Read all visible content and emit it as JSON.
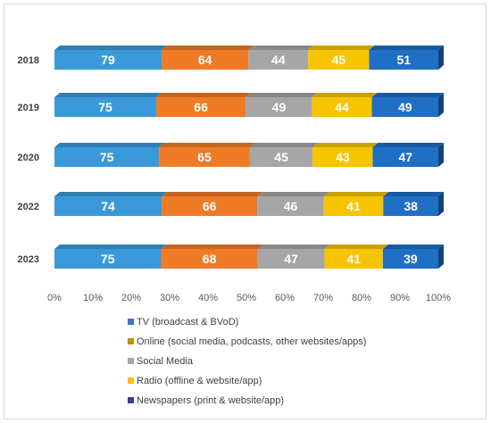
{
  "chart_data": {
    "type": "bar",
    "orientation": "horizontal",
    "stacked": "percent",
    "style": "3d",
    "categories": [
      "2018",
      "2019",
      "2020",
      "2022",
      "2023"
    ],
    "series": [
      {
        "name": "TV (broadcast & BVoD)",
        "color": "#3a9ad9",
        "values": [
          79,
          75,
          75,
          74,
          75
        ]
      },
      {
        "name": "Online (social media, podcasts, other websites/apps)",
        "color": "#f07b27",
        "values": [
          64,
          66,
          65,
          66,
          68
        ]
      },
      {
        "name": "Social Media",
        "color": "#a6a6a6",
        "values": [
          44,
          49,
          45,
          46,
          47
        ]
      },
      {
        "name": "Radio (offline & website/app)",
        "color": "#f7c400",
        "values": [
          45,
          44,
          43,
          41,
          41
        ]
      },
      {
        "name": "Newspapers (print & website/app)",
        "color": "#1f6fc5",
        "values": [
          51,
          49,
          47,
          38,
          39
        ]
      }
    ],
    "x_ticks": [
      "0%",
      "10%",
      "20%",
      "30%",
      "40%",
      "50%",
      "60%",
      "70%",
      "80%",
      "90%",
      "100%"
    ],
    "xlim": [
      0,
      100
    ],
    "legend_position": "bottom",
    "grid": false,
    "legend_colors": [
      "#4472c4",
      "#bf9000",
      "#a6a6a6",
      "#ffc000",
      "#2e3f9e"
    ]
  }
}
